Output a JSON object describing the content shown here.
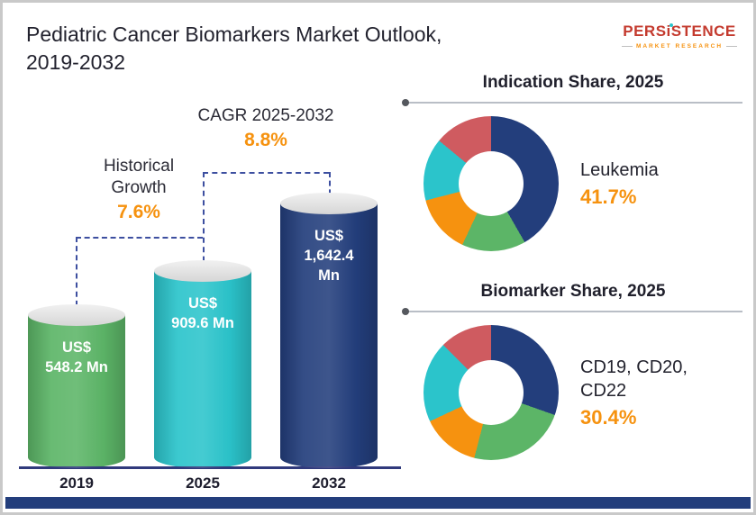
{
  "header": {
    "title": "Pediatric Cancer Biomarkers Market Outlook, 2019-2032",
    "brand": {
      "name": "PERSiSTENCE",
      "tagline": "MARKET RESEARCH"
    }
  },
  "colors": {
    "green": "#5cb567",
    "teal": "#2bc4cb",
    "navy": "#233e7c",
    "orange": "#f6920f",
    "red": "#cf5b60",
    "accent_text_orange": "#f6920f"
  },
  "chart_data": [
    {
      "type": "bar",
      "categories": [
        "2019",
        "2025",
        "2032"
      ],
      "values": [
        548.2,
        909.6,
        1642.4
      ],
      "value_labels": [
        "US$ 548.2 Mn",
        "US$ 909.6 Mn",
        "US$ 1,642.4 Mn"
      ],
      "bar_colors": [
        "#5cb567",
        "#2bc4cb",
        "#233e7c"
      ],
      "ylabel": "US$ Mn",
      "annotations": [
        {
          "label": "Historical Growth",
          "value": "7.6%"
        },
        {
          "label": "CAGR 2025-2032",
          "value": "8.8%"
        }
      ]
    },
    {
      "type": "pie",
      "title": "Indication Share, 2025",
      "highlight": {
        "label": "Leukemia",
        "value": "41.7%"
      },
      "segments": [
        {
          "label": "Leukemia",
          "value": 41.7,
          "color": "#233e7c"
        },
        {
          "value": 15.3,
          "color": "#5cb567"
        },
        {
          "value": 14.0,
          "color": "#f6920f"
        },
        {
          "value": 15.0,
          "color": "#2bc4cb"
        },
        {
          "value": 14.0,
          "color": "#cf5b60"
        }
      ]
    },
    {
      "type": "pie",
      "title": "Biomarker Share, 2025",
      "highlight": {
        "label": "CD19, CD20, CD22",
        "value": "30.4%"
      },
      "segments": [
        {
          "label": "CD19, CD20, CD22",
          "value": 30.4,
          "color": "#233e7c"
        },
        {
          "value": 23.6,
          "color": "#5cb567"
        },
        {
          "value": 14.0,
          "color": "#f6920f"
        },
        {
          "value": 19.5,
          "color": "#2bc4cb"
        },
        {
          "value": 12.5,
          "color": "#cf5b60"
        }
      ]
    }
  ]
}
